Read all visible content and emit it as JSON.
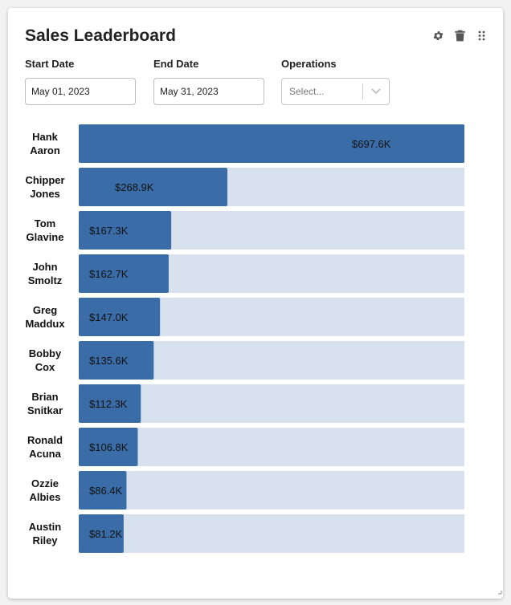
{
  "card": {
    "title": "Sales Leaderboard",
    "toolbar": [
      {
        "icon": "gear-icon"
      },
      {
        "icon": "trash-icon"
      },
      {
        "icon": "drag-handle-icon"
      }
    ]
  },
  "filters": {
    "start_date": {
      "label": "Start Date",
      "value": "May 01, 2023"
    },
    "end_date": {
      "label": "End Date",
      "value": "May 31, 2023"
    },
    "operations": {
      "label": "Operations",
      "placeholder": "Select..."
    }
  },
  "colors": {
    "bar": "#3a6ca8",
    "track": "#d8e2ef"
  },
  "chart_data": {
    "type": "bar",
    "orientation": "horizontal",
    "categories": [
      "Hank Aaron",
      "Chipper Jones",
      "Tom Glavine",
      "John Smoltz",
      "Greg Maddux",
      "Bobby Cox",
      "Brian Snitkar",
      "Ronald Acuna",
      "Ozzie Albies",
      "Austin Riley"
    ],
    "values": [
      697.6,
      268.9,
      167.3,
      162.7,
      147.0,
      135.6,
      112.3,
      106.8,
      86.4,
      81.2
    ],
    "labels": [
      "$697.6K",
      "$268.9K",
      "$167.3K",
      "$162.7K",
      "$147.0K",
      "$135.6K",
      "$112.3K",
      "$106.8K",
      "$86.4K",
      "$81.2K"
    ],
    "xlim": [
      0,
      697.6
    ]
  }
}
